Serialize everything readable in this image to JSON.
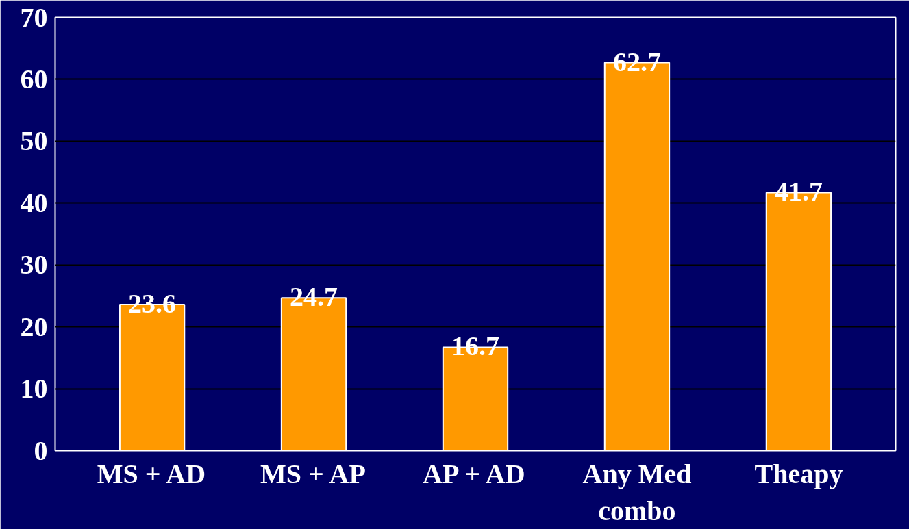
{
  "chart_data": {
    "type": "bar",
    "categories": [
      "MS + AD",
      "MS + AP",
      "AP + AD",
      "Any Med combo",
      "Theapy"
    ],
    "values": [
      23.6,
      24.7,
      16.7,
      62.7,
      41.7
    ],
    "color": "#ff9900",
    "ylim": [
      0,
      70
    ],
    "yticks": [
      0,
      10,
      20,
      30,
      40,
      50,
      60,
      70
    ],
    "grid": "y",
    "data_labels": true
  }
}
